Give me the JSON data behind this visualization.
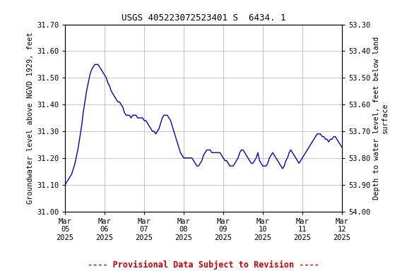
{
  "title": "USGS 405223072523401 S  6434. 1",
  "ylabel_left": "Groundwater level above NGVD 1929, feet",
  "ylabel_right": "Depth to water level, feet below land\nsurface",
  "xlabel_dates": [
    "Mar\n05\n2025",
    "Mar\n06\n2025",
    "Mar\n07\n2025",
    "Mar\n08\n2025",
    "Mar\n09\n2025",
    "Mar\n10\n2025",
    "Mar\n11\n2025",
    "Mar\n12\n2025"
  ],
  "ylim_left": [
    31.0,
    31.7
  ],
  "ylim_right": [
    53.3,
    54.0
  ],
  "yticks_left": [
    31.0,
    31.1,
    31.2,
    31.3,
    31.4,
    31.5,
    31.6,
    31.7
  ],
  "yticks_right": [
    53.3,
    53.4,
    53.5,
    53.6,
    53.7,
    53.8,
    53.9,
    54.0
  ],
  "line_color": "#0000cc",
  "line_width": 1.0,
  "footer_text": "---- Provisional Data Subject to Revision ----",
  "footer_color": "#cc0000",
  "grid_color": "#b0b0b0",
  "background_color": "#ffffff",
  "x_values": [
    0,
    0.042,
    0.083,
    0.125,
    0.167,
    0.208,
    0.25,
    0.292,
    0.333,
    0.375,
    0.417,
    0.458,
    0.5,
    0.542,
    0.583,
    0.625,
    0.667,
    0.708,
    0.75,
    0.792,
    0.833,
    0.875,
    0.917,
    0.958,
    1.0,
    1.042,
    1.083,
    1.125,
    1.167,
    1.208,
    1.25,
    1.292,
    1.333,
    1.375,
    1.417,
    1.458,
    1.5,
    1.542,
    1.583,
    1.625,
    1.667,
    1.708,
    1.75,
    1.792,
    1.833,
    1.875,
    1.917,
    1.958,
    2.0,
    2.042,
    2.083,
    2.125,
    2.167,
    2.208,
    2.25,
    2.292,
    2.333,
    2.375,
    2.417,
    2.458,
    2.5,
    2.542,
    2.583,
    2.625,
    2.667,
    2.708,
    2.75,
    2.792,
    2.833,
    2.875,
    2.917,
    2.958,
    3.0,
    3.042,
    3.083,
    3.125,
    3.167,
    3.208,
    3.25,
    3.292,
    3.333,
    3.375,
    3.417,
    3.458,
    3.5,
    3.542,
    3.583,
    3.625,
    3.667,
    3.708,
    3.75,
    3.792,
    3.833,
    3.875,
    3.917,
    3.958,
    4.0,
    4.042,
    4.083,
    4.125,
    4.167,
    4.208,
    4.25,
    4.292,
    4.333,
    4.375,
    4.417,
    4.458,
    4.5,
    4.542,
    4.583,
    4.625,
    4.667,
    4.708,
    4.75,
    4.792,
    4.833,
    4.875,
    4.917,
    4.958,
    5.0,
    5.042,
    5.083,
    5.125,
    5.167,
    5.208,
    5.25,
    5.292,
    5.333,
    5.375,
    5.417,
    5.458,
    5.5,
    5.542,
    5.583,
    5.625,
    5.667,
    5.708,
    5.75,
    5.792,
    5.833,
    5.875,
    5.917,
    5.958,
    6.0,
    6.042,
    6.083,
    6.125,
    6.167,
    6.208,
    6.25,
    6.292,
    6.333,
    6.375,
    6.417,
    6.458,
    6.5,
    6.542,
    6.583,
    6.625,
    6.667,
    6.708,
    6.75,
    6.792,
    6.833,
    6.875,
    6.917,
    6.958,
    7.0
  ],
  "y_values": [
    31.1,
    31.11,
    31.12,
    31.13,
    31.14,
    31.16,
    31.18,
    31.21,
    31.24,
    31.28,
    31.32,
    31.37,
    31.41,
    31.45,
    31.48,
    31.51,
    31.53,
    31.54,
    31.55,
    31.55,
    31.55,
    31.54,
    31.53,
    31.52,
    31.51,
    31.5,
    31.48,
    31.47,
    31.45,
    31.44,
    31.43,
    31.42,
    31.41,
    31.41,
    31.4,
    31.39,
    31.37,
    31.36,
    31.36,
    31.36,
    31.35,
    31.36,
    31.36,
    31.36,
    31.35,
    31.35,
    31.35,
    31.35,
    31.34,
    31.34,
    31.33,
    31.32,
    31.31,
    31.3,
    31.3,
    31.29,
    31.3,
    31.31,
    31.33,
    31.35,
    31.36,
    31.36,
    31.36,
    31.35,
    31.34,
    31.32,
    31.3,
    31.28,
    31.26,
    31.24,
    31.22,
    31.21,
    31.2,
    31.2,
    31.2,
    31.2,
    31.2,
    31.2,
    31.19,
    31.18,
    31.17,
    31.17,
    31.18,
    31.19,
    31.21,
    31.22,
    31.23,
    31.23,
    31.23,
    31.22,
    31.22,
    31.22,
    31.22,
    31.22,
    31.22,
    31.21,
    31.2,
    31.19,
    31.19,
    31.18,
    31.17,
    31.17,
    31.17,
    31.18,
    31.19,
    31.2,
    31.22,
    31.23,
    31.23,
    31.22,
    31.21,
    31.2,
    31.19,
    31.18,
    31.18,
    31.19,
    31.2,
    31.22,
    31.19,
    31.18,
    31.17,
    31.17,
    31.17,
    31.18,
    31.2,
    31.21,
    31.22,
    31.21,
    31.2,
    31.19,
    31.18,
    31.17,
    31.16,
    31.17,
    31.19,
    31.2,
    31.22,
    31.23,
    31.22,
    31.21,
    31.2,
    31.19,
    31.18,
    31.19,
    31.2,
    31.21,
    31.22,
    31.23,
    31.24,
    31.25,
    31.26,
    31.27,
    31.28,
    31.29,
    31.29,
    31.29,
    31.28,
    31.28,
    31.27,
    31.27,
    31.26,
    31.27,
    31.27,
    31.28,
    31.28,
    31.27,
    31.26,
    31.25,
    31.24
  ]
}
